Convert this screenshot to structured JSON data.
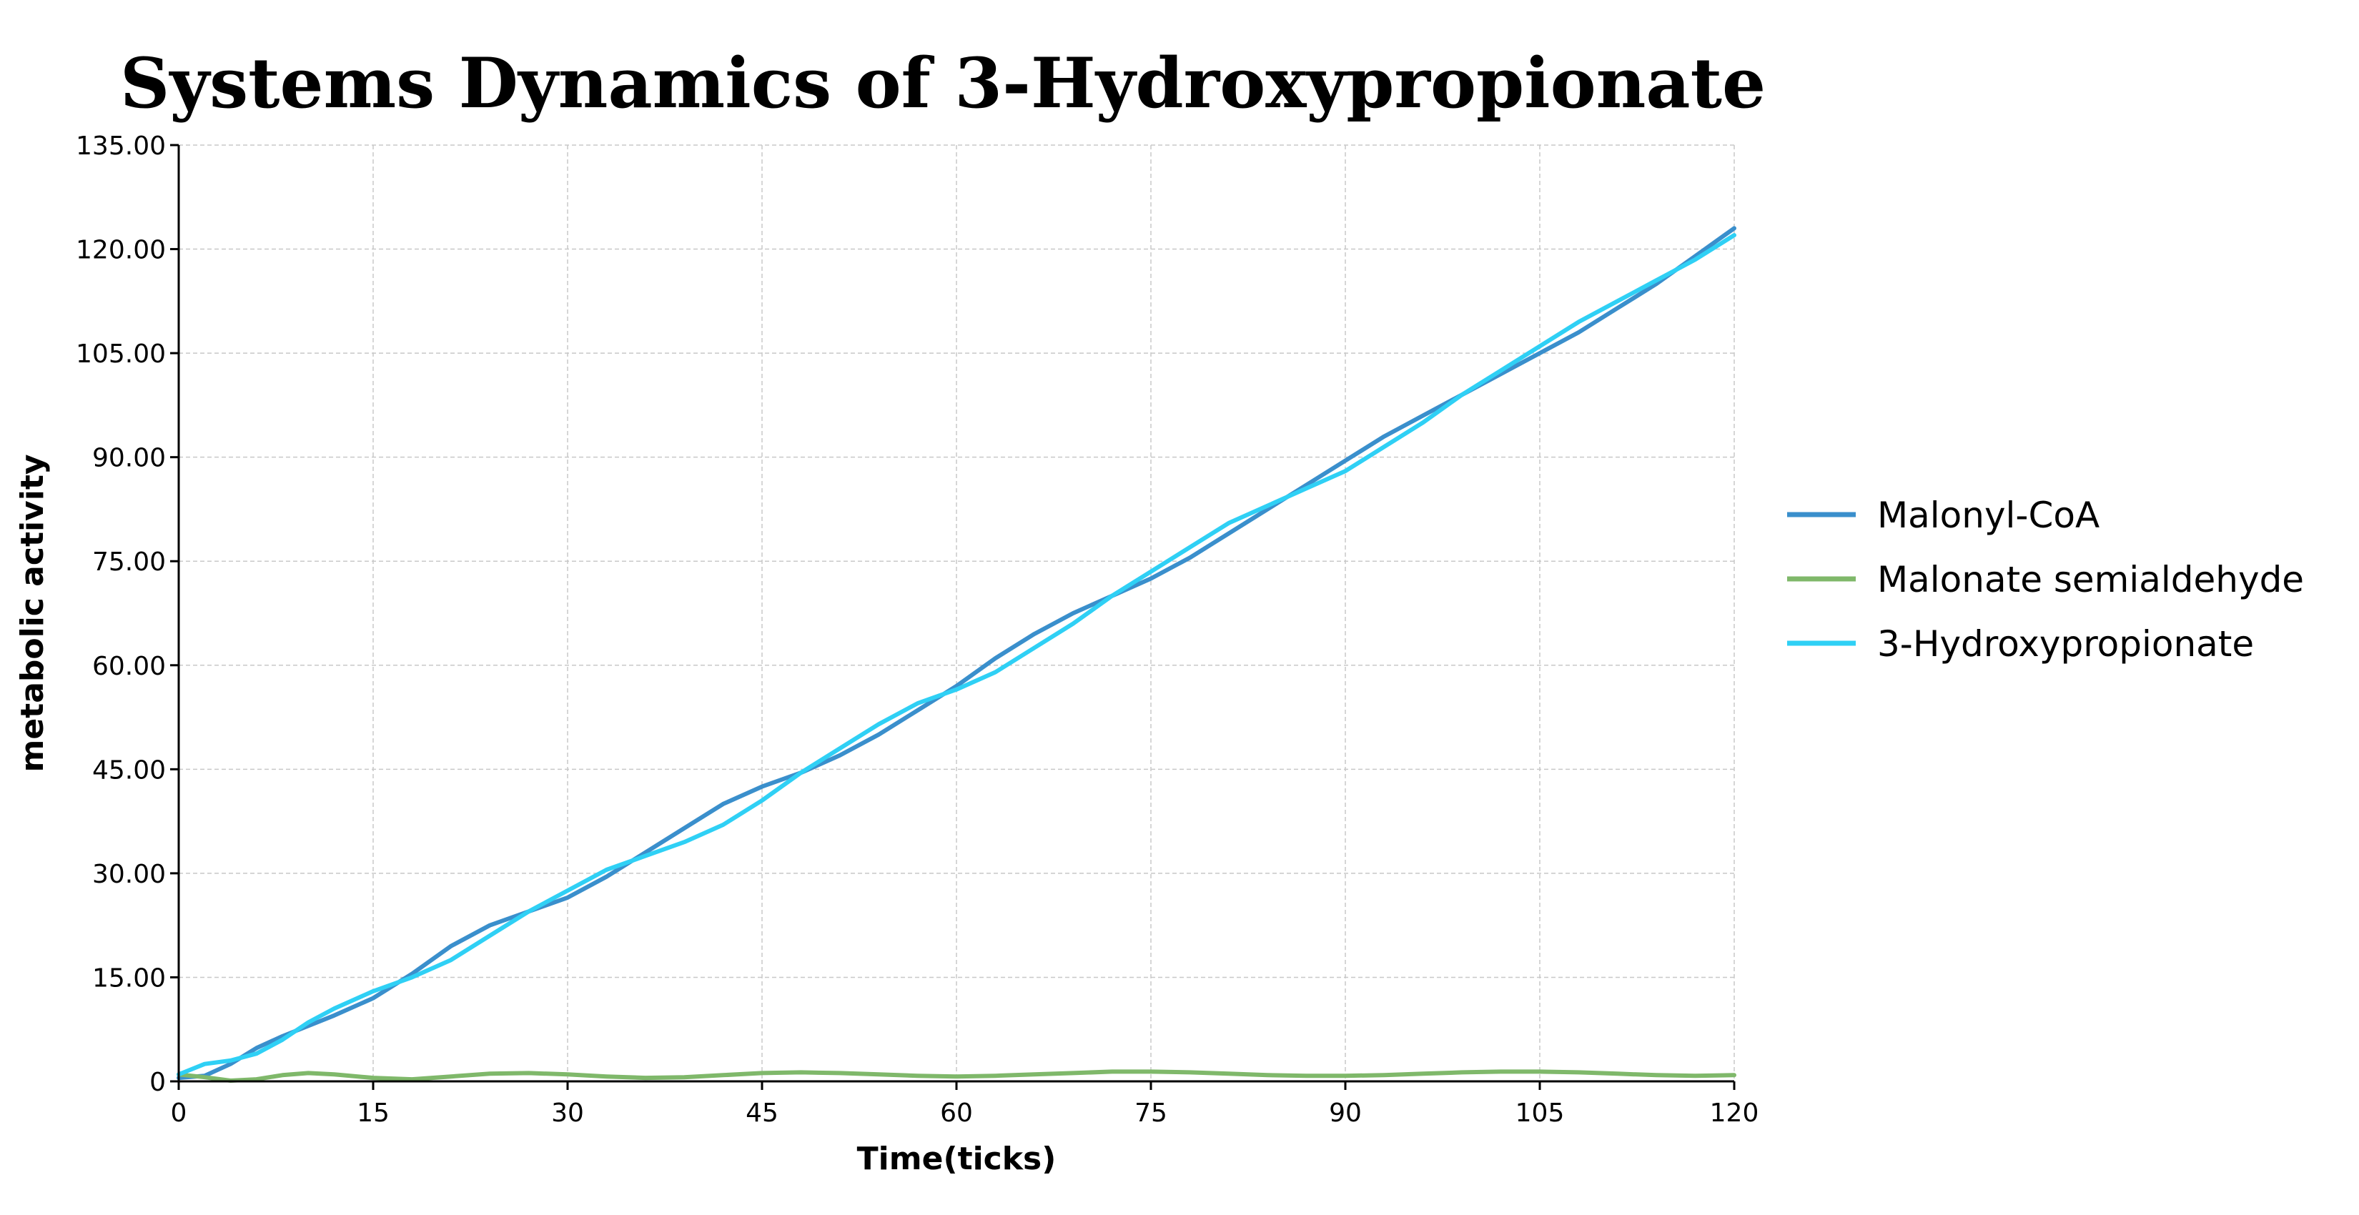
{
  "chart_data": {
    "type": "line",
    "title": "Systems Dynamics of 3-Hydroxypropionate",
    "xlabel": "Time(ticks)",
    "ylabel": "metabolic activity",
    "xlim": [
      0,
      120
    ],
    "ylim": [
      0,
      135
    ],
    "x_ticks": [
      "0",
      "15",
      "30",
      "45",
      "60",
      "75",
      "90",
      "105",
      "120"
    ],
    "y_ticks": [
      "0",
      "15.00",
      "30.00",
      "45.00",
      "60.00",
      "75.00",
      "90.00",
      "105.00",
      "120.00",
      "135.00"
    ],
    "grid": true,
    "legend_position": "right",
    "x": [
      0,
      2,
      4,
      6,
      8,
      10,
      12,
      15,
      18,
      21,
      24,
      27,
      30,
      33,
      36,
      39,
      42,
      45,
      48,
      51,
      54,
      57,
      60,
      63,
      66,
      69,
      72,
      75,
      78,
      81,
      84,
      87,
      90,
      93,
      96,
      99,
      102,
      105,
      108,
      111,
      114,
      117,
      120
    ],
    "series": [
      {
        "name": "Malonyl-CoA",
        "color": "#3a8fcc",
        "values": [
          0.5,
          0.8,
          2.5,
          4.8,
          6.5,
          8.0,
          9.5,
          12.0,
          15.5,
          19.5,
          22.5,
          24.5,
          26.5,
          29.5,
          33.0,
          36.5,
          40.0,
          42.5,
          44.5,
          47.0,
          50.0,
          53.5,
          57.0,
          61.0,
          64.5,
          67.5,
          70.0,
          72.5,
          75.5,
          79.0,
          82.5,
          86.0,
          89.5,
          93.0,
          96.0,
          99.0,
          102.0,
          105.0,
          108.0,
          111.5,
          115.0,
          119.0,
          123.0
        ]
      },
      {
        "name": "Malonate semialdehyde",
        "color": "#7fb86a",
        "values": [
          1.0,
          0.6,
          0.1,
          0.3,
          0.9,
          1.2,
          1.0,
          0.5,
          0.3,
          0.7,
          1.1,
          1.2,
          1.0,
          0.7,
          0.5,
          0.6,
          0.9,
          1.2,
          1.3,
          1.2,
          1.0,
          0.8,
          0.7,
          0.8,
          1.0,
          1.2,
          1.4,
          1.4,
          1.3,
          1.1,
          0.9,
          0.8,
          0.8,
          0.9,
          1.1,
          1.3,
          1.4,
          1.4,
          1.3,
          1.1,
          0.9,
          0.8,
          0.9
        ]
      },
      {
        "name": "3-Hydroxypropionate",
        "color": "#2fd0f5",
        "values": [
          1.0,
          2.5,
          3.0,
          4.0,
          6.0,
          8.5,
          10.5,
          13.0,
          15.0,
          17.5,
          21.0,
          24.5,
          27.5,
          30.5,
          32.5,
          34.5,
          37.0,
          40.5,
          44.5,
          48.0,
          51.5,
          54.5,
          56.5,
          59.0,
          62.5,
          66.0,
          70.0,
          73.5,
          77.0,
          80.5,
          83.0,
          85.5,
          88.0,
          91.5,
          95.0,
          99.0,
          102.5,
          106.0,
          109.5,
          112.5,
          115.5,
          118.5,
          122.0
        ]
      }
    ]
  }
}
